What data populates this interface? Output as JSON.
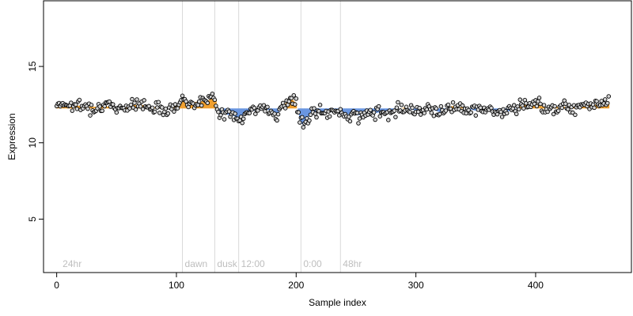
{
  "chart_data": {
    "type": "scatter",
    "title": "",
    "xlabel": "Sample index",
    "ylabel": "Expression",
    "xlim": [
      -11,
      480
    ],
    "ylim": [
      1.5,
      19.3
    ],
    "x_ticks": [
      0,
      100,
      200,
      300,
      400
    ],
    "y_ticks": [
      5,
      10,
      15
    ],
    "baseline": 12.25,
    "grid": false,
    "legend": "none",
    "colors": {
      "point_fill": "#d3d3d3",
      "point_stroke": "#000000",
      "above_baseline": "#f0a030",
      "below_baseline": "#6a96e0",
      "phase_line": "#d9d9d9",
      "phase_text": "#bebebe"
    },
    "phase_markers": [
      {
        "x": 3,
        "label": "24hr"
      },
      {
        "x": 105,
        "label": "dawn"
      },
      {
        "x": 132,
        "label": "dusk"
      },
      {
        "x": 152,
        "label": "12:00"
      },
      {
        "x": 204,
        "label": "0:00"
      },
      {
        "x": 237,
        "label": "48hr"
      }
    ],
    "series_trend": [
      {
        "x": 0,
        "y": 12.6
      },
      {
        "x": 10,
        "y": 12.5
      },
      {
        "x": 20,
        "y": 12.4
      },
      {
        "x": 30,
        "y": 12.35
      },
      {
        "x": 40,
        "y": 12.4
      },
      {
        "x": 50,
        "y": 12.3
      },
      {
        "x": 60,
        "y": 12.45
      },
      {
        "x": 70,
        "y": 12.5
      },
      {
        "x": 80,
        "y": 12.35
      },
      {
        "x": 90,
        "y": 12.25
      },
      {
        "x": 98,
        "y": 12.3
      },
      {
        "x": 104,
        "y": 12.8
      },
      {
        "x": 110,
        "y": 12.6
      },
      {
        "x": 118,
        "y": 12.7
      },
      {
        "x": 126,
        "y": 12.75
      },
      {
        "x": 132,
        "y": 13.0
      },
      {
        "x": 136,
        "y": 12.0
      },
      {
        "x": 142,
        "y": 11.85
      },
      {
        "x": 148,
        "y": 11.75
      },
      {
        "x": 153,
        "y": 11.55
      },
      {
        "x": 158,
        "y": 12.0
      },
      {
        "x": 165,
        "y": 12.1
      },
      {
        "x": 172,
        "y": 12.3
      },
      {
        "x": 178,
        "y": 12.1
      },
      {
        "x": 184,
        "y": 11.8
      },
      {
        "x": 190,
        "y": 12.5
      },
      {
        "x": 196,
        "y": 12.9
      },
      {
        "x": 200,
        "y": 12.6
      },
      {
        "x": 203,
        "y": 11.5
      },
      {
        "x": 206,
        "y": 11.1
      },
      {
        "x": 212,
        "y": 11.9
      },
      {
        "x": 220,
        "y": 12.0
      },
      {
        "x": 230,
        "y": 12.0
      },
      {
        "x": 240,
        "y": 11.9
      },
      {
        "x": 250,
        "y": 11.8
      },
      {
        "x": 260,
        "y": 11.85
      },
      {
        "x": 270,
        "y": 12.0
      },
      {
        "x": 280,
        "y": 12.1
      },
      {
        "x": 290,
        "y": 12.3
      },
      {
        "x": 300,
        "y": 12.1
      },
      {
        "x": 310,
        "y": 12.3
      },
      {
        "x": 320,
        "y": 12.0
      },
      {
        "x": 330,
        "y": 12.4
      },
      {
        "x": 340,
        "y": 12.3
      },
      {
        "x": 350,
        "y": 12.1
      },
      {
        "x": 360,
        "y": 12.2
      },
      {
        "x": 370,
        "y": 12.0
      },
      {
        "x": 380,
        "y": 12.1
      },
      {
        "x": 390,
        "y": 12.5
      },
      {
        "x": 400,
        "y": 12.6
      },
      {
        "x": 410,
        "y": 12.2
      },
      {
        "x": 420,
        "y": 12.4
      },
      {
        "x": 430,
        "y": 12.3
      },
      {
        "x": 440,
        "y": 12.6
      },
      {
        "x": 450,
        "y": 12.5
      },
      {
        "x": 461,
        "y": 12.7
      }
    ],
    "n_points": 462,
    "point_scatter_sd": 0.28
  }
}
